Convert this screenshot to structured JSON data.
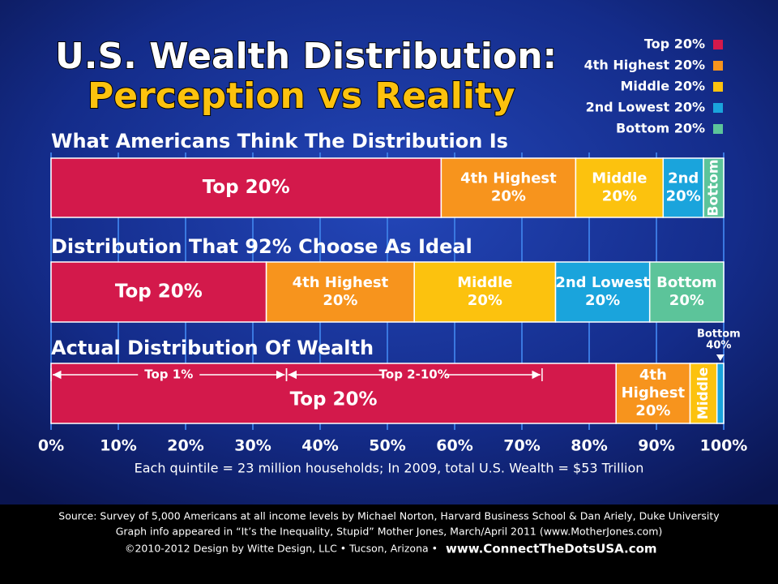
{
  "chart_data": {
    "type": "stacked-bar",
    "title": "U.S. Wealth Distribution:",
    "subtitle": "Perception vs Reality",
    "categories": [
      "What Americans Think The Distribution Is",
      "Distribution That 92% Choose As Ideal",
      "Actual Distribution Of Wealth"
    ],
    "series": [
      {
        "name": "Top 20%",
        "color": "#d3194b",
        "values": [
          58,
          32,
          84
        ],
        "segment_labels": [
          [
            "Top 20%"
          ],
          [
            "Top 20%"
          ],
          [
            "Top 20%"
          ]
        ]
      },
      {
        "name": "4th Highest 20%",
        "color": "#f7941d",
        "values": [
          20,
          22,
          11
        ],
        "segment_labels": [
          [
            "4th Highest",
            "20%"
          ],
          [
            "4th Highest",
            "20%"
          ],
          [
            "4th",
            "Highest",
            "20%"
          ]
        ]
      },
      {
        "name": "Middle 20%",
        "color": "#fcc20e",
        "values": [
          13,
          21,
          4
        ],
        "segment_labels": [
          [
            "Middle",
            "20%"
          ],
          [
            "Middle",
            "20%"
          ],
          [
            "Middle"
          ]
        ]
      },
      {
        "name": "2nd Lowest 20%",
        "color": "#1aa4dc",
        "values": [
          6,
          14,
          1
        ],
        "segment_labels": [
          [
            "2nd",
            "20%"
          ],
          [
            "2nd Lowest",
            "20%"
          ],
          [
            "Bottom",
            "40%"
          ]
        ]
      },
      {
        "name": "Bottom 20%",
        "color": "#5cc49a",
        "values": [
          3,
          11,
          null
        ],
        "segment_labels": [
          [
            "Bottom"
          ],
          [
            "Bottom",
            "20%"
          ],
          null
        ]
      }
    ],
    "annotations": [
      {
        "bar": 2,
        "text": "Top 1%",
        "range": [
          0,
          35
        ]
      },
      {
        "bar": 2,
        "text": "Top 2-10%",
        "range": [
          35,
          73
        ]
      }
    ],
    "xlim": [
      0,
      100
    ],
    "xticks": [
      {
        "value": 0,
        "label": "0%"
      },
      {
        "value": 10,
        "label": "10%"
      },
      {
        "value": 20,
        "label": "20%"
      },
      {
        "value": 30,
        "label": "30%"
      },
      {
        "value": 40,
        "label": "40%"
      },
      {
        "value": 50,
        "label": "50%"
      },
      {
        "value": 60,
        "label": "60%"
      },
      {
        "value": 70,
        "label": "70%"
      },
      {
        "value": 80,
        "label": "80%"
      },
      {
        "value": 90,
        "label": "90%"
      },
      {
        "value": 100,
        "label": "100%"
      }
    ],
    "grid": true,
    "note": "Each quintile = 23 million households; In 2009, total U.S. Wealth = $53 Trillion",
    "footer": {
      "source": "Source: Survey of 5,000 Americans at all income levels by Michael Norton, Harvard Business School & Dan Ariely, Duke University",
      "publication": "Graph info appeared in “It’s the Inequality, Stupid” Mother Jones, March/April 2011 (www.MotherJones.com)",
      "credit": "©2010-2012 Design by Witte Design, LLC • Tucson, Arizona •",
      "website": "www.ConnectTheDotsUSA.com"
    }
  }
}
